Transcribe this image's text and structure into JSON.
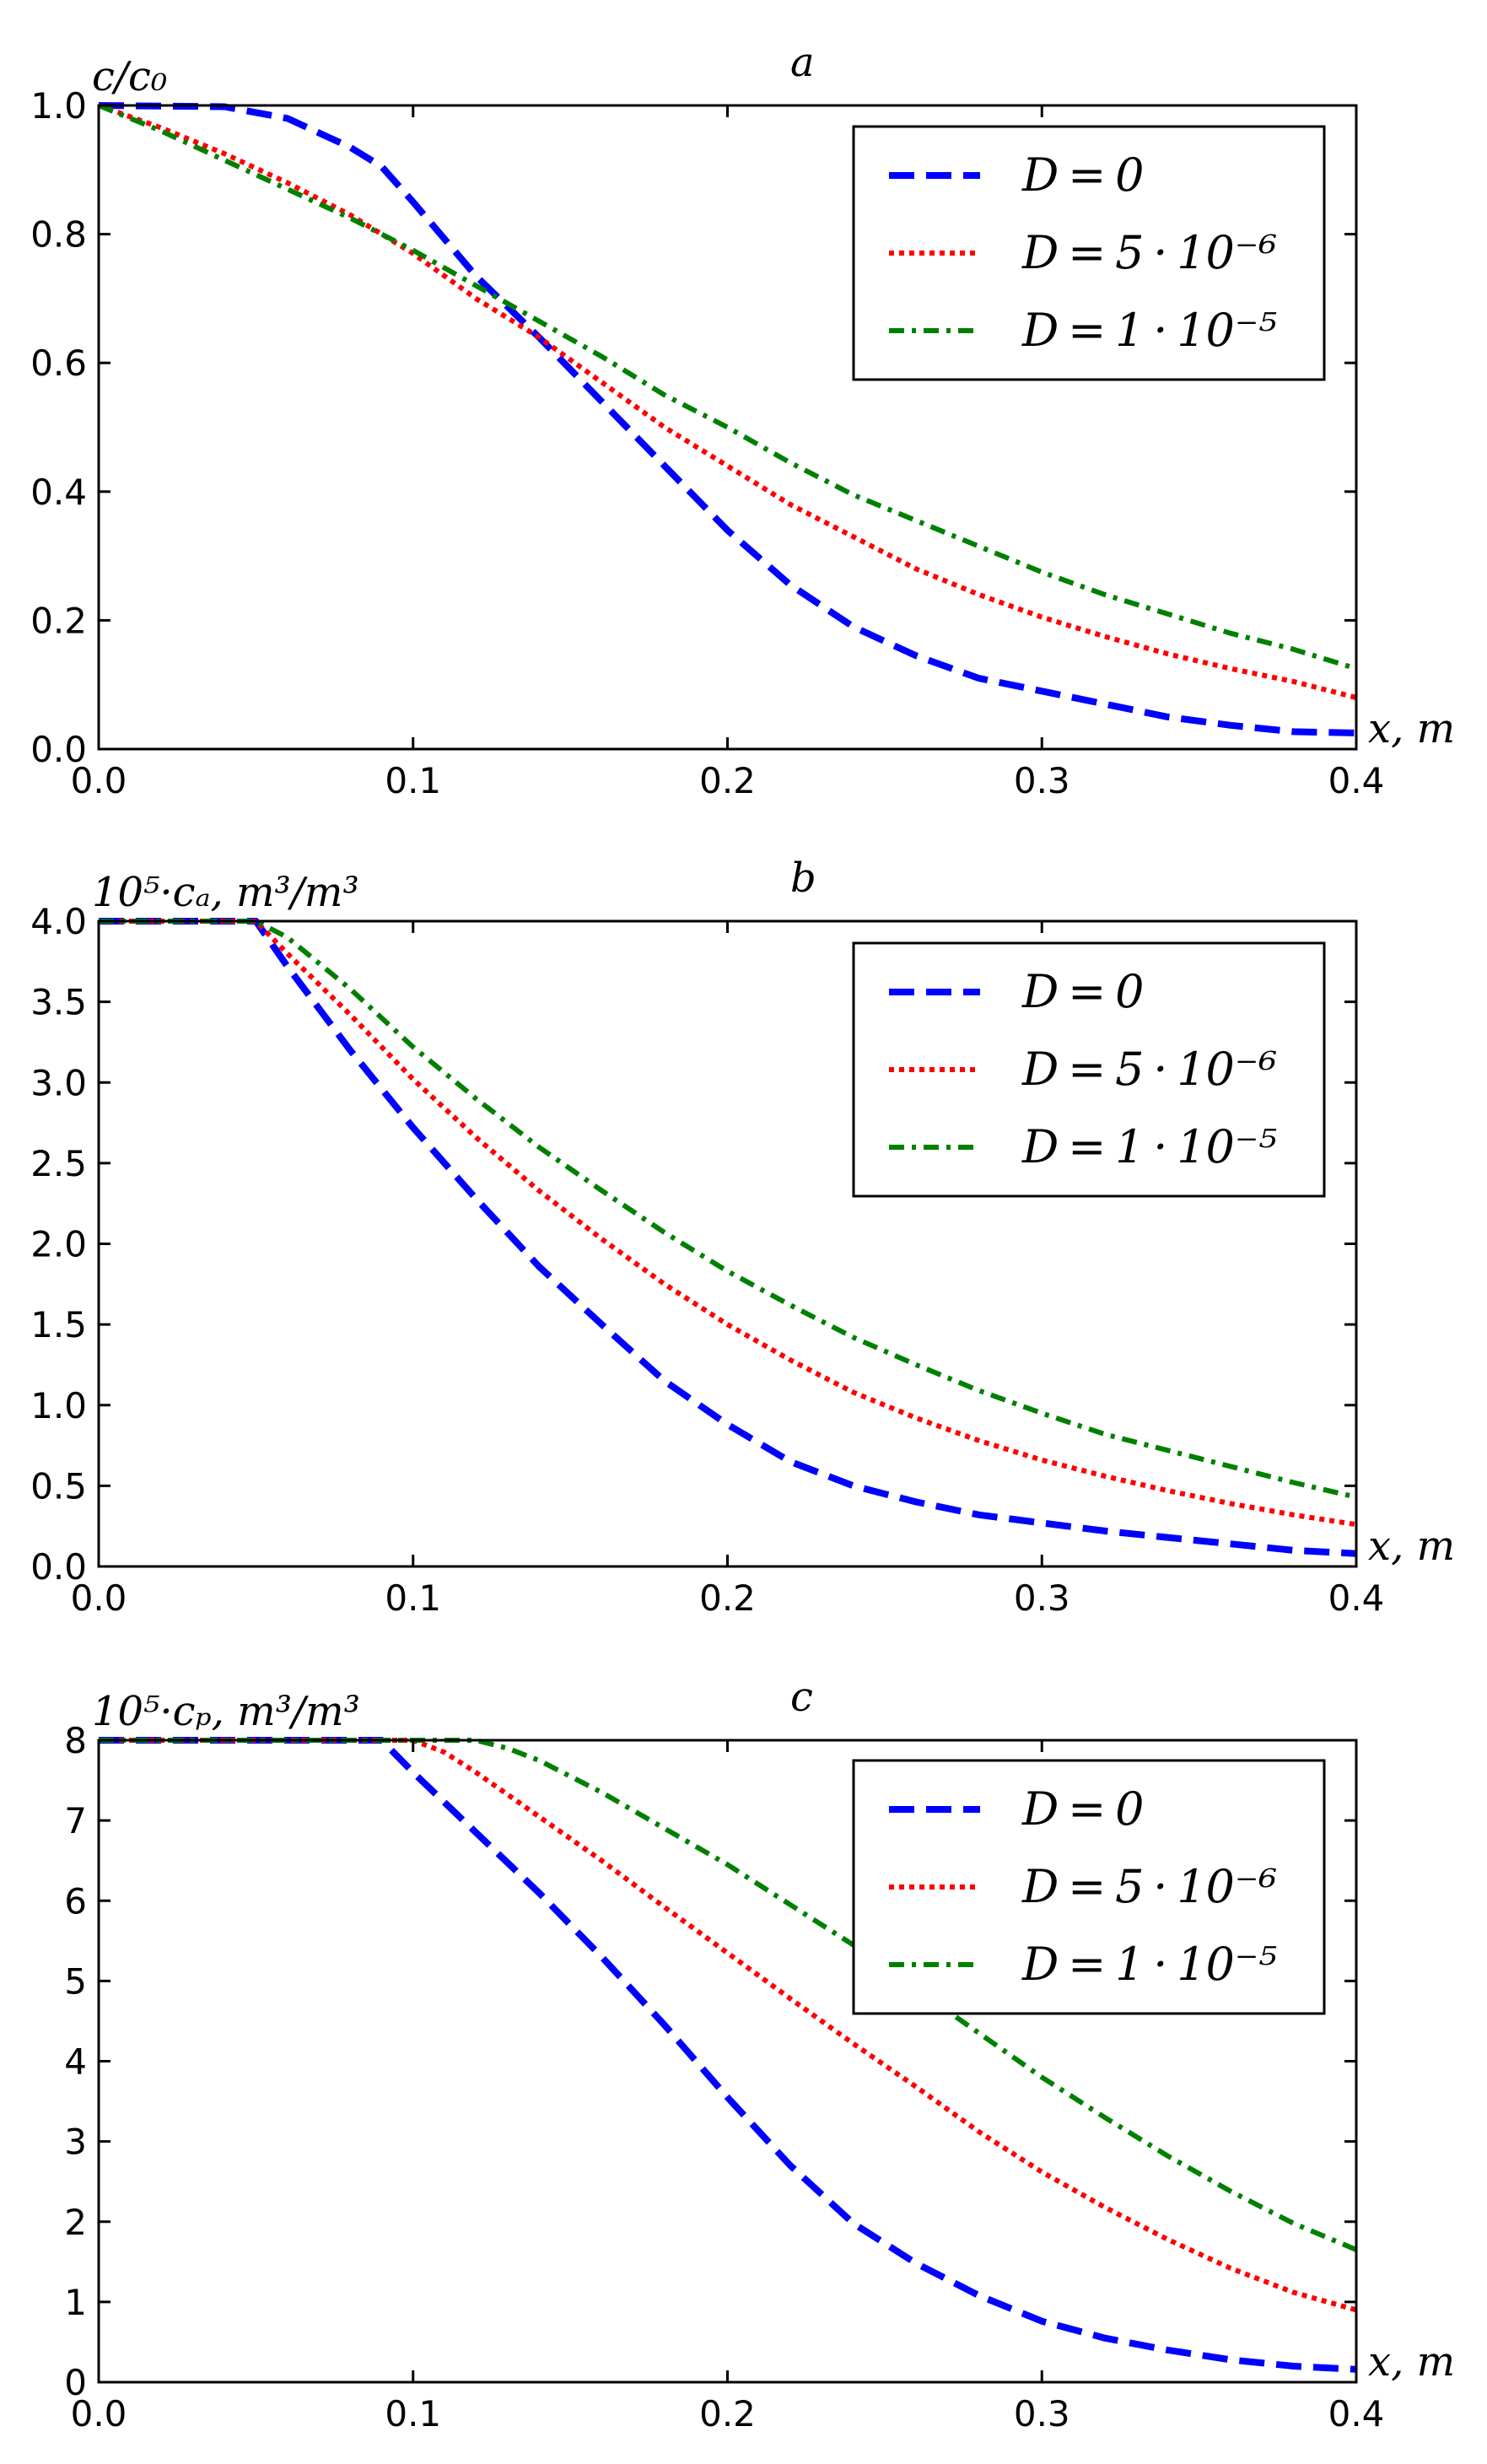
{
  "figure": {
    "legend_entries": [
      "D = 0",
      "D = 5 · 10⁻⁶",
      "D = 1 · 10⁻⁵"
    ]
  },
  "series_colors": [
    "#0000ff",
    "#ff0000",
    "#008000"
  ],
  "chart_data": [
    {
      "type": "line",
      "panel_label": "a",
      "ylabel": "c/c₀",
      "xlabel": "x, m",
      "xlim": [
        0.0,
        0.4
      ],
      "ylim": [
        0.0,
        1.0
      ],
      "xticks": [
        "0.0",
        "0.1",
        "0.2",
        "0.3",
        "0.4"
      ],
      "yticks": [
        "0.0",
        "0.2",
        "0.4",
        "0.6",
        "0.8",
        "1.0"
      ],
      "legend_position": "top-right",
      "grid": false,
      "series": [
        {
          "name": "D=0",
          "style": "dashed",
          "x": [
            0,
            0.04,
            0.06,
            0.08,
            0.09,
            0.1,
            0.12,
            0.14,
            0.16,
            0.18,
            0.2,
            0.22,
            0.24,
            0.26,
            0.28,
            0.3,
            0.32,
            0.34,
            0.36,
            0.38,
            0.4
          ],
          "y": [
            1.0,
            0.998,
            0.98,
            0.935,
            0.905,
            0.85,
            0.735,
            0.64,
            0.54,
            0.44,
            0.34,
            0.255,
            0.19,
            0.145,
            0.11,
            0.09,
            0.07,
            0.05,
            0.037,
            0.027,
            0.025
          ]
        },
        {
          "name": "D=5·10⁻⁶",
          "style": "dotted",
          "x": [
            0,
            0.02,
            0.04,
            0.06,
            0.08,
            0.1,
            0.12,
            0.14,
            0.16,
            0.18,
            0.2,
            0.22,
            0.24,
            0.26,
            0.28,
            0.3,
            0.32,
            0.34,
            0.36,
            0.38,
            0.4
          ],
          "y": [
            1.0,
            0.965,
            0.925,
            0.88,
            0.83,
            0.77,
            0.7,
            0.64,
            0.57,
            0.5,
            0.44,
            0.38,
            0.33,
            0.28,
            0.24,
            0.205,
            0.175,
            0.148,
            0.125,
            0.105,
            0.08
          ]
        },
        {
          "name": "D=1·10⁻⁵",
          "style": "dashdot",
          "x": [
            0,
            0.02,
            0.04,
            0.06,
            0.08,
            0.1,
            0.12,
            0.14,
            0.16,
            0.18,
            0.2,
            0.22,
            0.24,
            0.26,
            0.28,
            0.3,
            0.32,
            0.34,
            0.36,
            0.38,
            0.4
          ],
          "y": [
            1.0,
            0.96,
            0.915,
            0.87,
            0.825,
            0.775,
            0.72,
            0.665,
            0.61,
            0.55,
            0.5,
            0.445,
            0.395,
            0.355,
            0.315,
            0.275,
            0.24,
            0.21,
            0.18,
            0.155,
            0.125
          ]
        }
      ]
    },
    {
      "type": "line",
      "panel_label": "b",
      "ylabel": "10⁵·cₐ, m³/m³",
      "xlabel": "x, m",
      "xlim": [
        0.0,
        0.4
      ],
      "ylim": [
        0.0,
        4.0
      ],
      "xticks": [
        "0.0",
        "0.1",
        "0.2",
        "0.3",
        "0.4"
      ],
      "yticks": [
        "0.0",
        "0.5",
        "1.0",
        "1.5",
        "2.0",
        "2.5",
        "3.0",
        "3.5",
        "4.0"
      ],
      "legend_position": "upper-right",
      "grid": false,
      "series": [
        {
          "name": "D=0",
          "style": "dashed",
          "x": [
            0,
            0.05,
            0.06,
            0.08,
            0.1,
            0.12,
            0.14,
            0.16,
            0.18,
            0.2,
            0.22,
            0.24,
            0.26,
            0.28,
            0.3,
            0.32,
            0.34,
            0.36,
            0.38,
            0.4
          ],
          "y": [
            4.0,
            4.0,
            3.72,
            3.2,
            2.72,
            2.28,
            1.86,
            1.5,
            1.15,
            0.88,
            0.65,
            0.5,
            0.4,
            0.32,
            0.27,
            0.22,
            0.18,
            0.14,
            0.1,
            0.08
          ]
        },
        {
          "name": "D=5·10⁻⁶",
          "style": "dotted",
          "x": [
            0,
            0.05,
            0.06,
            0.08,
            0.1,
            0.12,
            0.14,
            0.16,
            0.18,
            0.2,
            0.22,
            0.24,
            0.26,
            0.28,
            0.3,
            0.32,
            0.34,
            0.36,
            0.38,
            0.4
          ],
          "y": [
            4.0,
            4.0,
            3.8,
            3.42,
            3.02,
            2.66,
            2.33,
            2.03,
            1.75,
            1.5,
            1.28,
            1.08,
            0.92,
            0.78,
            0.66,
            0.56,
            0.47,
            0.39,
            0.32,
            0.26
          ]
        },
        {
          "name": "D=1·10⁻⁵",
          "style": "dashdot",
          "x": [
            0,
            0.05,
            0.06,
            0.08,
            0.1,
            0.12,
            0.14,
            0.16,
            0.18,
            0.2,
            0.22,
            0.24,
            0.26,
            0.28,
            0.3,
            0.32,
            0.34,
            0.36,
            0.38,
            0.4
          ],
          "y": [
            4.0,
            4.0,
            3.9,
            3.58,
            3.22,
            2.9,
            2.6,
            2.33,
            2.07,
            1.83,
            1.62,
            1.42,
            1.25,
            1.09,
            0.95,
            0.82,
            0.72,
            0.62,
            0.52,
            0.43
          ]
        }
      ]
    },
    {
      "type": "line",
      "panel_label": "c",
      "ylabel": "10⁵·cₚ, m³/m³",
      "xlabel": "x, m",
      "xlim": [
        0.0,
        0.4
      ],
      "ylim": [
        0.0,
        8.0
      ],
      "xticks": [
        "0.0",
        "0.1",
        "0.2",
        "0.3",
        "0.4"
      ],
      "yticks": [
        "0",
        "1",
        "2",
        "3",
        "4",
        "5",
        "6",
        "7",
        "8"
      ],
      "legend_position": "upper-right",
      "grid": false,
      "series": [
        {
          "name": "D=0",
          "style": "dashed",
          "x": [
            0,
            0.09,
            0.1,
            0.12,
            0.14,
            0.16,
            0.18,
            0.2,
            0.22,
            0.24,
            0.26,
            0.28,
            0.3,
            0.32,
            0.34,
            0.36,
            0.38,
            0.4
          ],
          "y": [
            8.0,
            8.0,
            7.6,
            6.85,
            6.1,
            5.3,
            4.45,
            3.55,
            2.7,
            1.98,
            1.48,
            1.08,
            0.76,
            0.55,
            0.4,
            0.28,
            0.2,
            0.16
          ]
        },
        {
          "name": "D=5·10⁻⁶",
          "style": "dotted",
          "x": [
            0,
            0.1,
            0.11,
            0.12,
            0.14,
            0.16,
            0.18,
            0.2,
            0.22,
            0.24,
            0.26,
            0.28,
            0.3,
            0.32,
            0.34,
            0.36,
            0.38,
            0.4
          ],
          "y": [
            8.0,
            8.0,
            7.85,
            7.6,
            7.05,
            6.5,
            5.92,
            5.35,
            4.78,
            4.22,
            3.68,
            3.12,
            2.62,
            2.18,
            1.78,
            1.42,
            1.12,
            0.9
          ]
        },
        {
          "name": "D=1·10⁻⁵",
          "style": "dashdot",
          "x": [
            0,
            0.12,
            0.13,
            0.14,
            0.16,
            0.18,
            0.2,
            0.22,
            0.24,
            0.26,
            0.28,
            0.3,
            0.32,
            0.34,
            0.36,
            0.38,
            0.4
          ],
          "y": [
            8.0,
            8.0,
            7.9,
            7.75,
            7.35,
            6.9,
            6.45,
            5.95,
            5.45,
            4.9,
            4.35,
            3.8,
            3.3,
            2.82,
            2.38,
            1.98,
            1.65
          ]
        }
      ]
    }
  ]
}
